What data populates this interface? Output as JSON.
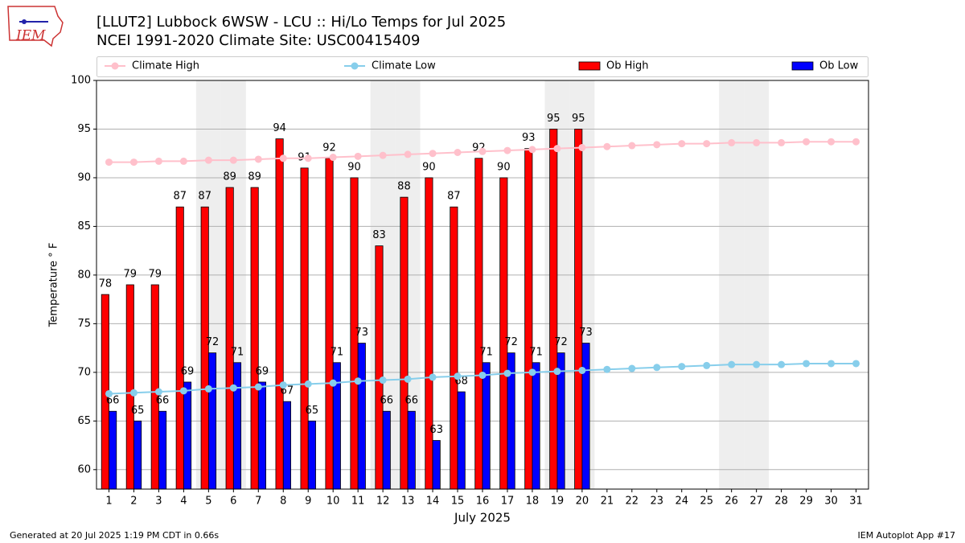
{
  "chart_data": {
    "type": "bar",
    "title": "[LLUT2] Lubbock 6WSW - LCU :: Hi/Lo Temps for Jul 2025",
    "subtitle": "NCEI 1991-2020 Climate Site: USC00415409",
    "logo_text": "IEM",
    "xlabel": "July 2025",
    "ylabel": "Temperature ° F",
    "footer_left": "Generated at 20 Jul 2025 1:19 PM CDT in 0.66s",
    "footer_right": "IEM Autoplot App #17",
    "x": [
      1,
      2,
      3,
      4,
      5,
      6,
      7,
      8,
      9,
      10,
      11,
      12,
      13,
      14,
      15,
      16,
      17,
      18,
      19,
      20,
      21,
      22,
      23,
      24,
      25,
      26,
      27,
      28,
      29,
      30,
      31
    ],
    "xlim": [
      0.5,
      31.5
    ],
    "xticks": [
      1,
      2,
      3,
      4,
      5,
      6,
      7,
      8,
      9,
      10,
      11,
      12,
      13,
      14,
      15,
      16,
      17,
      18,
      19,
      20,
      21,
      22,
      23,
      24,
      25,
      26,
      27,
      28,
      29,
      30,
      31
    ],
    "ylim": [
      58,
      100
    ],
    "yticks": [
      60,
      65,
      70,
      75,
      80,
      85,
      90,
      95,
      100
    ],
    "grid": true,
    "shaded_days": [
      5,
      6,
      12,
      13,
      19,
      20,
      26,
      27
    ],
    "shade_color": "#eeeeee",
    "series": [
      {
        "name": "Climate High",
        "type": "line",
        "color": "#ffc0cb",
        "values": [
          91.6,
          91.6,
          91.7,
          91.7,
          91.8,
          91.8,
          91.9,
          92.0,
          92.0,
          92.1,
          92.2,
          92.3,
          92.4,
          92.5,
          92.6,
          92.7,
          92.8,
          92.9,
          93.0,
          93.1,
          93.2,
          93.3,
          93.4,
          93.5,
          93.5,
          93.6,
          93.6,
          93.6,
          93.7,
          93.7,
          93.7
        ]
      },
      {
        "name": "Climate Low",
        "type": "line",
        "color": "#87ceeb",
        "values": [
          67.8,
          67.9,
          68.0,
          68.1,
          68.3,
          68.4,
          68.5,
          68.7,
          68.8,
          68.9,
          69.1,
          69.2,
          69.3,
          69.5,
          69.6,
          69.7,
          69.9,
          70.0,
          70.1,
          70.2,
          70.3,
          70.4,
          70.5,
          70.6,
          70.7,
          70.8,
          70.8,
          70.8,
          70.9,
          70.9,
          70.9
        ]
      },
      {
        "name": "Ob High",
        "type": "bar",
        "color": "#ff0000",
        "values": [
          78,
          79,
          79,
          87,
          87,
          89,
          89,
          94,
          91,
          92,
          90,
          83,
          88,
          90,
          87,
          92,
          90,
          93,
          95,
          95,
          null,
          null,
          null,
          null,
          null,
          null,
          null,
          null,
          null,
          null,
          null
        ]
      },
      {
        "name": "Ob Low",
        "type": "bar",
        "color": "#0000ff",
        "values": [
          66,
          65,
          66,
          69,
          72,
          71,
          69,
          67,
          65,
          71,
          73,
          66,
          66,
          63,
          68,
          71,
          72,
          71,
          72,
          73,
          null,
          null,
          null,
          null,
          null,
          null,
          null,
          null,
          null,
          null,
          null
        ]
      }
    ]
  }
}
